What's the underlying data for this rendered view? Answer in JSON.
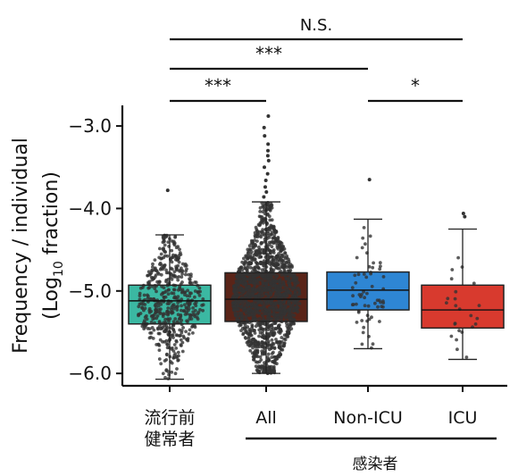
{
  "chart_data": {
    "type": "box",
    "ylabel_line1": "Frequency / individual",
    "ylabel_line2_pre": "(Log",
    "ylabel_line2_sub": "10",
    "ylabel_line2_post": " fraction)",
    "ylim": [
      -6.15,
      -2.75
    ],
    "yticks": [
      {
        "value": -3.0,
        "label": "−3.0"
      },
      {
        "value": -4.0,
        "label": "−4.0"
      },
      {
        "value": -5.0,
        "label": "−5.0"
      },
      {
        "value": -6.0,
        "label": "−6.0"
      }
    ],
    "groups": [
      {
        "label_lines": [
          "流行前",
          "健常者"
        ],
        "color": "#3bb8a2",
        "q1": -5.4,
        "median": -5.12,
        "q3": -4.93,
        "whisker_low": -6.07,
        "whisker_high": -4.32,
        "n_points": 520,
        "outliers": [
          -3.78
        ]
      },
      {
        "label_lines": [
          "All"
        ],
        "color": "#5a2418",
        "q1": -5.37,
        "median": -5.1,
        "q3": -4.78,
        "whisker_low": -6.0,
        "whisker_high": -3.92,
        "n_points": 1500,
        "outliers": [
          -3.86,
          -3.8,
          -3.74,
          -3.66,
          -3.58,
          -3.5,
          -3.42,
          -3.36,
          -3.3,
          -3.22,
          -3.12,
          -3.02,
          -2.88
        ]
      },
      {
        "label_lines": [
          "Non-ICU"
        ],
        "color": "#2e86d4",
        "q1": -5.23,
        "median": -4.99,
        "q3": -4.77,
        "whisker_low": -5.7,
        "whisker_high": -4.13,
        "n_points": 60,
        "outliers": [
          -3.65
        ]
      },
      {
        "label_lines": [
          "ICU"
        ],
        "color": "#d83a2e",
        "q1": -5.45,
        "median": -5.23,
        "q3": -4.93,
        "whisker_low": -5.83,
        "whisker_high": -4.25,
        "n_points": 24,
        "outliers": [
          -4.06,
          -4.1
        ]
      }
    ],
    "significance": [
      {
        "from": 0,
        "to": 3,
        "label": "N.S."
      },
      {
        "from": 0,
        "to": 2,
        "label": "***"
      },
      {
        "from": 0,
        "to": 1,
        "label": "***"
      },
      {
        "from": 2,
        "to": 3,
        "label": "*"
      }
    ],
    "bracket": {
      "from": 1,
      "to": 3,
      "label": "感染者"
    },
    "colors": {
      "axis": "#111111",
      "points": "#333333"
    }
  }
}
